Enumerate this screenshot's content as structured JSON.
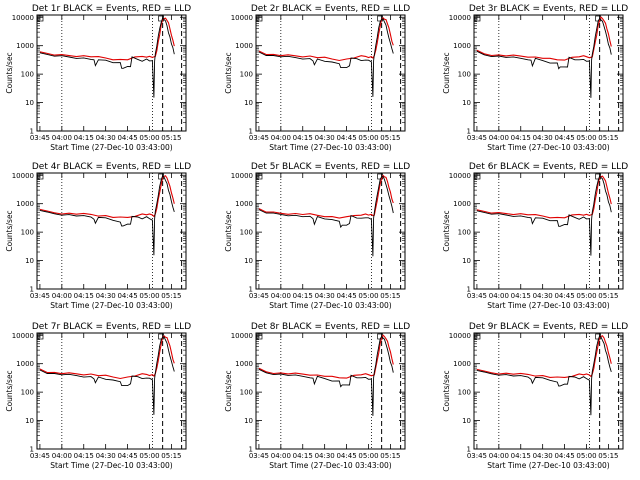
{
  "chart_data": [
    {
      "type": "line",
      "title": "Det 1r BLACK = Events, RED = LLD",
      "xlabel": "Start Time (27-Dec-10 03:43:00)",
      "ylabel": "Counts/sec"
    },
    {
      "type": "line",
      "title": "Det 2r BLACK = Events, RED = LLD",
      "xlabel": "Start Time (27-Dec-10 03:43:00)",
      "ylabel": "Counts/sec"
    },
    {
      "type": "line",
      "title": "Det 3r BLACK = Events, RED = LLD",
      "xlabel": "Start Time (27-Dec-10 03:43:00)",
      "ylabel": "Counts/sec"
    },
    {
      "type": "line",
      "title": "Det 4r BLACK = Events, RED = LLD",
      "xlabel": "Start Time (27-Dec-10 03:43:00)",
      "ylabel": "Counts/sec"
    },
    {
      "type": "line",
      "title": "Det 5r BLACK = Events, RED = LLD",
      "xlabel": "Start Time (27-Dec-10 03:43:00)",
      "ylabel": "Counts/sec"
    },
    {
      "type": "line",
      "title": "Det 6r BLACK = Events, RED = LLD",
      "xlabel": "Start Time (27-Dec-10 03:43:00)",
      "ylabel": "Counts/sec"
    },
    {
      "type": "line",
      "title": "Det 7r BLACK = Events, RED = LLD",
      "xlabel": "Start Time (27-Dec-10 03:43:00)",
      "ylabel": "Counts/sec"
    },
    {
      "type": "line",
      "title": "Det 8r BLACK = Events, RED = LLD",
      "xlabel": "Start Time (27-Dec-10 03:43:00)",
      "ylabel": "Counts/sec"
    },
    {
      "type": "line",
      "title": "Det 9r BLACK = Events, RED = LLD",
      "xlabel": "Start Time (27-Dec-10 03:43:00)",
      "ylabel": "Counts/sec"
    }
  ],
  "shared": {
    "x_ticks": [
      "03:45",
      "04:00",
      "04:15",
      "04:30",
      "04:45",
      "05:00",
      "05:15"
    ],
    "x_tick_minutes": [
      225,
      240,
      255,
      270,
      285,
      300,
      315
    ],
    "xlim_minutes": [
      223,
      325
    ],
    "y_ticks": [
      "1",
      "10",
      "100",
      "1000",
      "10000"
    ],
    "ylim": [
      1,
      12000
    ],
    "y_scale": "log",
    "dotted_lines_minutes": [
      240,
      302
    ],
    "dashed_lines_minutes": [
      309,
      322
    ],
    "series": [
      {
        "name": "Events",
        "color": "#000000",
        "x": [
          225,
          230,
          235,
          240,
          245,
          250,
          255,
          260,
          262,
          263,
          265,
          270,
          275,
          280,
          281,
          282,
          285,
          287,
          288,
          292,
          295,
          298,
          300,
          302,
          303,
          303.5,
          304,
          305,
          306,
          307,
          308,
          309,
          310,
          311,
          312,
          313,
          314,
          315,
          316,
          317
        ],
        "y": [
          600,
          480,
          440,
          420,
          400,
          380,
          360,
          340,
          300,
          200,
          340,
          300,
          260,
          240,
          160,
          170,
          180,
          190,
          380,
          330,
          300,
          330,
          300,
          280,
          15,
          300,
          500,
          1000,
          2000,
          4000,
          7000,
          9000,
          8500,
          7000,
          5000,
          3000,
          2000,
          1200,
          800,
          500
        ]
      },
      {
        "name": "LLD",
        "color": "#e00000",
        "x": [
          225,
          230,
          235,
          240,
          245,
          250,
          255,
          260,
          265,
          270,
          275,
          280,
          285,
          290,
          295,
          298,
          300,
          302,
          303,
          304,
          305,
          306,
          307,
          308,
          309,
          310,
          311,
          312,
          313,
          314,
          315,
          316,
          317
        ],
        "y": [
          650,
          520,
          480,
          460,
          450,
          440,
          430,
          420,
          390,
          370,
          340,
          320,
          330,
          380,
          420,
          420,
          410,
          400,
          380,
          420,
          700,
          1300,
          2500,
          5000,
          8000,
          9500,
          9000,
          8000,
          6000,
          4000,
          2500,
          1500,
          1000
        ]
      }
    ]
  }
}
